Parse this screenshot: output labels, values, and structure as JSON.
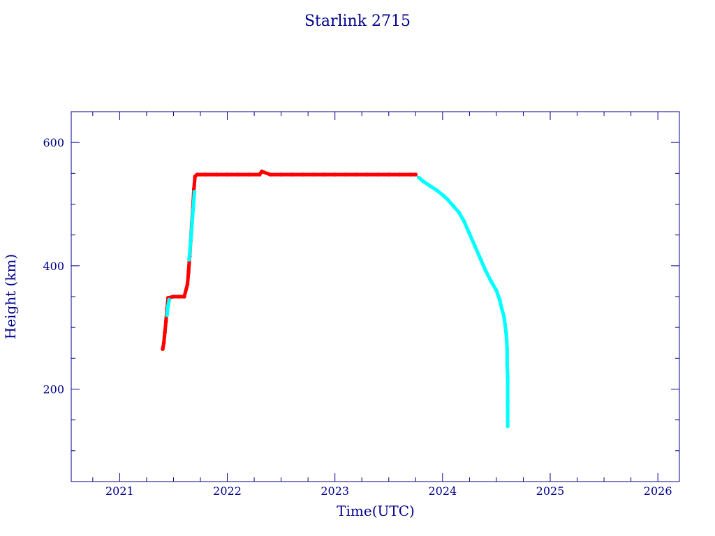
{
  "chart_data": {
    "type": "scatter",
    "title": "Starlink 2715",
    "xlabel": "Time(UTC)",
    "ylabel": "Height (km)",
    "xlim": [
      2020.55,
      2026.2
    ],
    "ylim": [
      50,
      650
    ],
    "x_ticks": [
      "2021",
      "2022",
      "2023",
      "2024",
      "2025",
      "2026"
    ],
    "y_ticks": [
      "200",
      "400",
      "600"
    ],
    "grid": false,
    "colors": {
      "axis": "#00008b",
      "series_a": "#ff0000",
      "series_b": "#00ffff",
      "connector": "#8b0000"
    },
    "series": [
      {
        "color": "#ff0000",
        "x": [
          2021.4,
          2021.41,
          2021.42,
          2021.43,
          2021.44,
          2021.45,
          2021.5,
          2021.55,
          2021.6,
          2021.63,
          2021.64,
          2021.65,
          2021.66,
          2021.67,
          2021.68,
          2021.69,
          2021.7,
          2021.72,
          2021.8,
          2021.9,
          2022.0,
          2022.1,
          2022.2,
          2022.3,
          2022.32,
          2022.4,
          2022.5,
          2022.6,
          2022.7,
          2022.8,
          2022.9,
          2023.0,
          2023.1,
          2023.2,
          2023.3,
          2023.4,
          2023.5,
          2023.6,
          2023.7,
          2023.75
        ],
        "y": [
          265,
          275,
          292,
          310,
          330,
          348,
          350,
          350,
          350,
          370,
          390,
          415,
          440,
          468,
          495,
          525,
          545,
          548,
          548,
          548,
          548,
          548,
          548,
          548,
          553,
          548,
          548,
          548,
          548,
          548,
          548,
          548,
          548,
          548,
          548,
          548,
          548,
          548,
          548,
          548
        ]
      },
      {
        "color": "#00ffff",
        "x": [
          2021.44,
          2021.45,
          2021.46,
          2021.645,
          2021.665,
          2021.675,
          2021.695,
          2023.78,
          2023.82,
          2023.88,
          2023.95,
          2024.0,
          2024.05,
          2024.1,
          2024.15,
          2024.2,
          2024.25,
          2024.3,
          2024.35,
          2024.4,
          2024.45,
          2024.5,
          2024.53,
          2024.55,
          2024.57,
          2024.58,
          2024.59,
          2024.595,
          2024.6,
          2024.6,
          2024.605,
          2024.605,
          2024.605
        ],
        "y": [
          320,
          335,
          345,
          410,
          450,
          475,
          520,
          543,
          537,
          530,
          522,
          515,
          507,
          497,
          487,
          472,
          452,
          432,
          412,
          392,
          375,
          360,
          345,
          330,
          318,
          305,
          292,
          280,
          265,
          240,
          220,
          180,
          140
        ]
      }
    ]
  }
}
